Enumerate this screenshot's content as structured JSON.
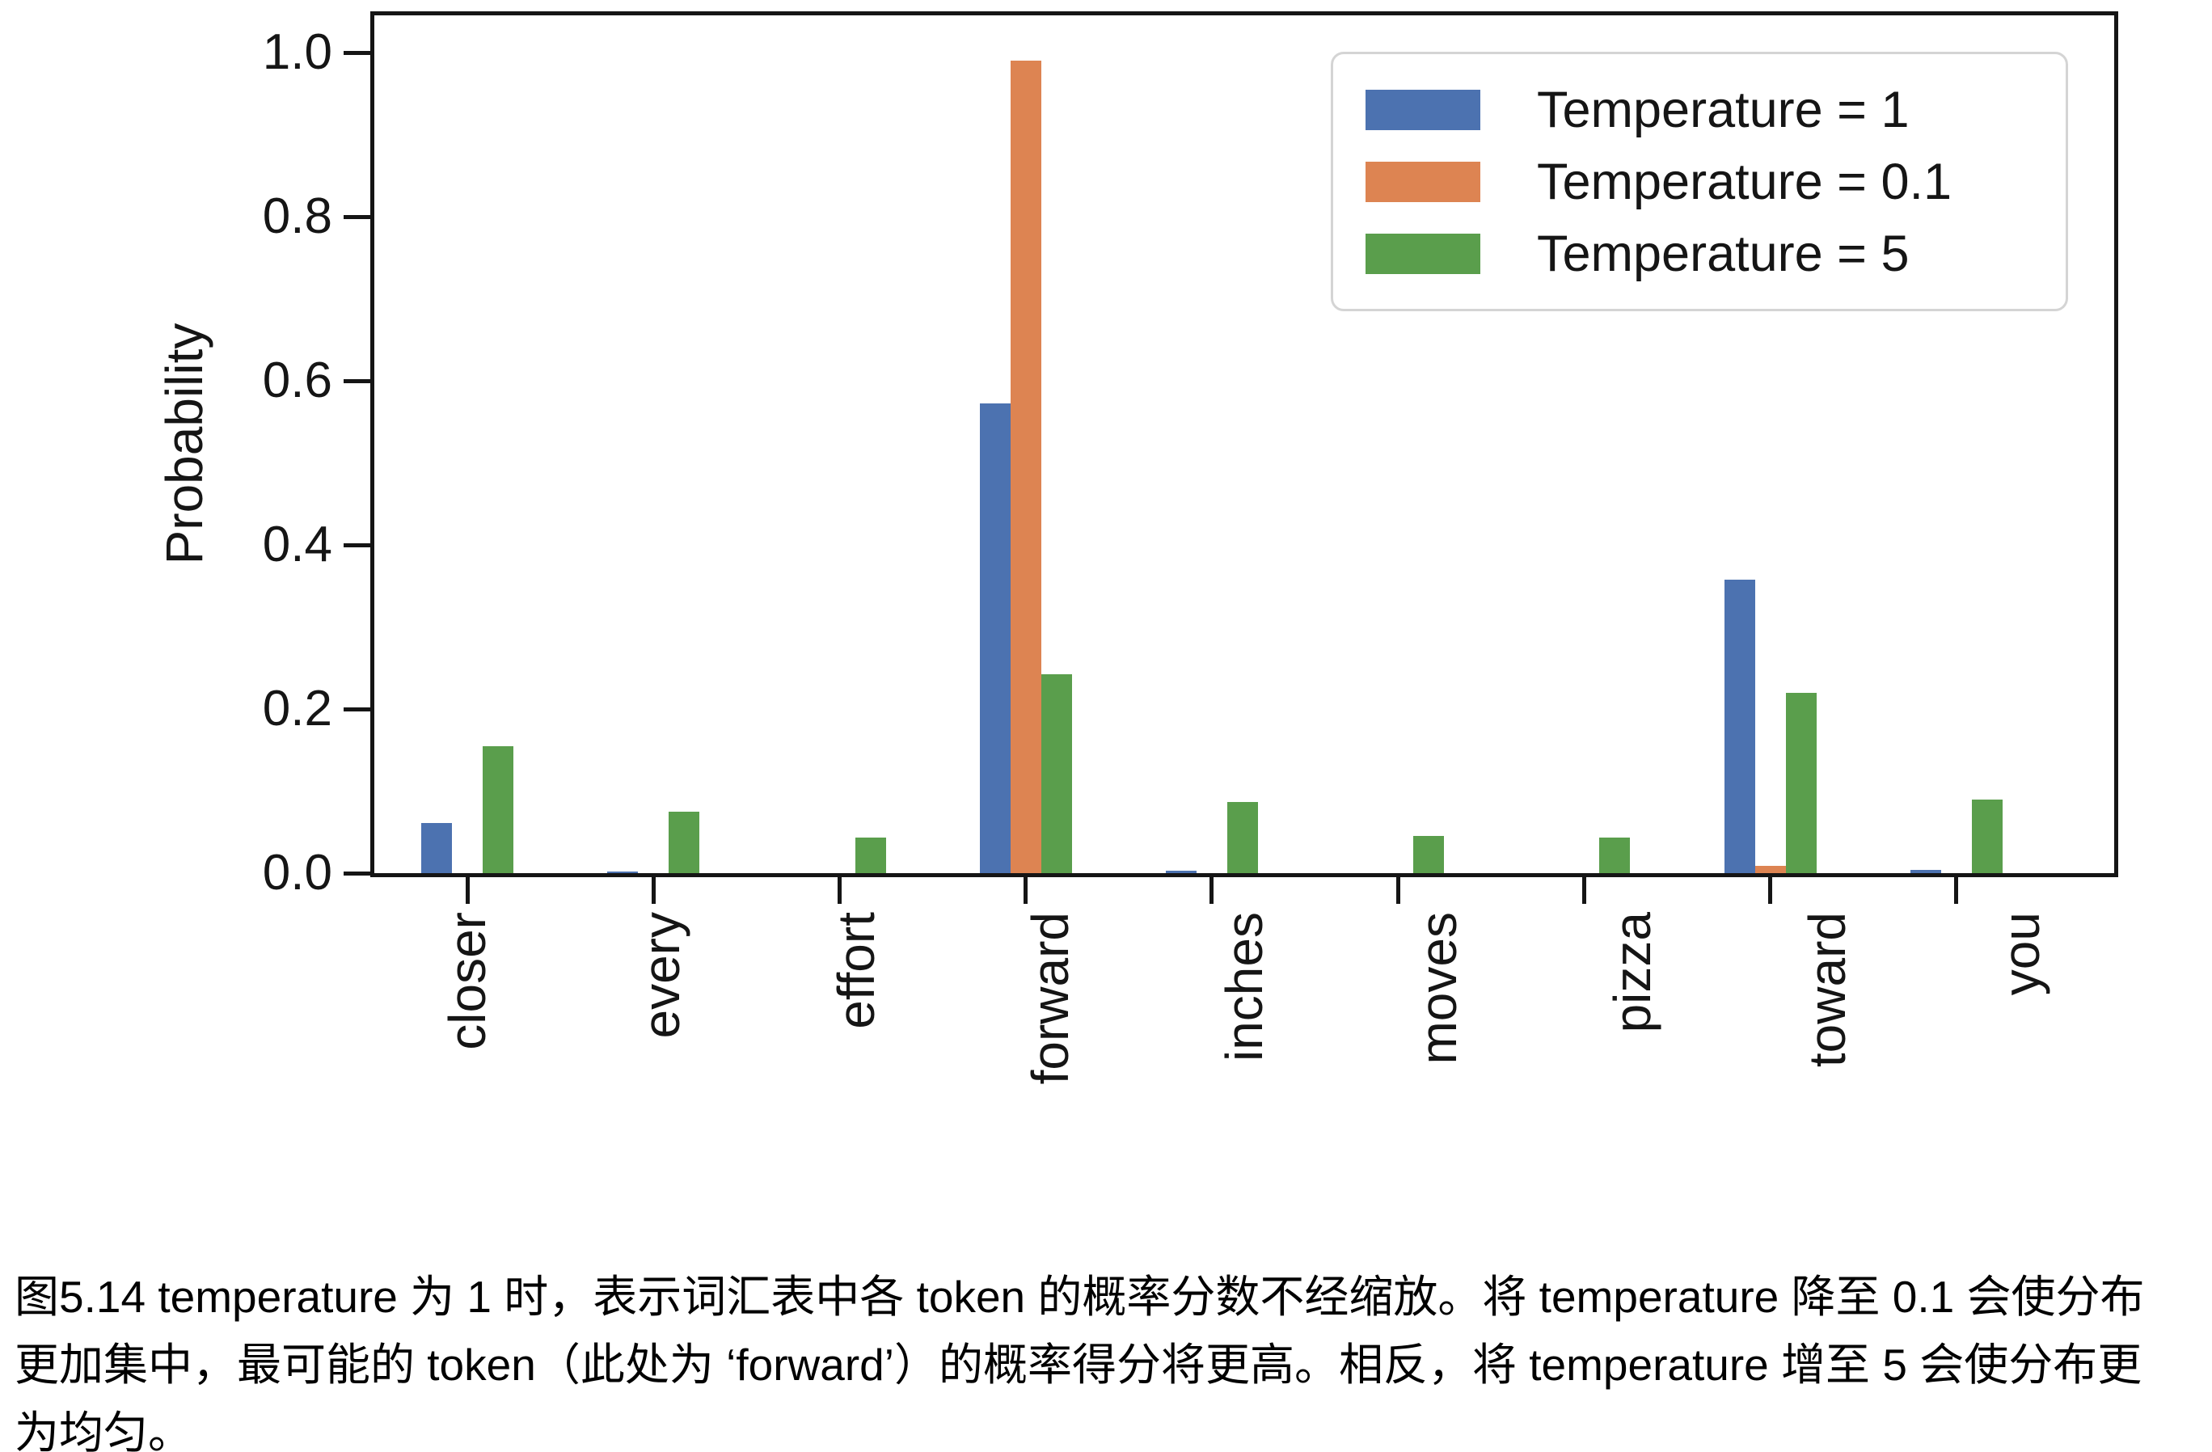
{
  "figure": {
    "caption_lines": [
      "图5.14 temperature 为 1 时，表示词汇表中各 token 的概率分数不经缩放。将 temperature 降至 0.1 会使分布",
      "更加集中，最可能的 token（此处为 ‘forward’）的概率得分将更高。相反，将 temperature 增至 5 会使分布更",
      "为均匀。"
    ]
  },
  "chart_data": {
    "type": "bar",
    "title": "",
    "xlabel": "",
    "ylabel": "Probability",
    "categories": [
      "closer",
      "every",
      "effort",
      "forward",
      "inches",
      "moves",
      "pizza",
      "toward",
      "you"
    ],
    "series": [
      {
        "name": "Temperature = 1",
        "color": "#4C72B0",
        "values": [
          0.061,
          0.002,
          0.0,
          0.572,
          0.003,
          0.0,
          0.0,
          0.358,
          0.004
        ]
      },
      {
        "name": "Temperature = 0.1",
        "color": "#DD8452",
        "values": [
          0.0,
          0.0,
          0.0,
          0.99,
          0.0,
          0.0,
          0.0,
          0.009,
          0.0
        ]
      },
      {
        "name": "Temperature = 5",
        "color": "#5A9E4C",
        "values": [
          0.155,
          0.075,
          0.043,
          0.242,
          0.087,
          0.045,
          0.043,
          0.22,
          0.09
        ]
      }
    ],
    "ylim": [
      0,
      1.05
    ],
    "yticks": [
      0.0,
      0.2,
      0.4,
      0.6,
      0.8,
      1.0
    ],
    "grid": false,
    "legend_position": "upper right",
    "bar_colors": {
      "blue": "#4C72B0",
      "orange": "#DD8452",
      "green": "#5A9E4C"
    },
    "axis_color": "#151515"
  }
}
